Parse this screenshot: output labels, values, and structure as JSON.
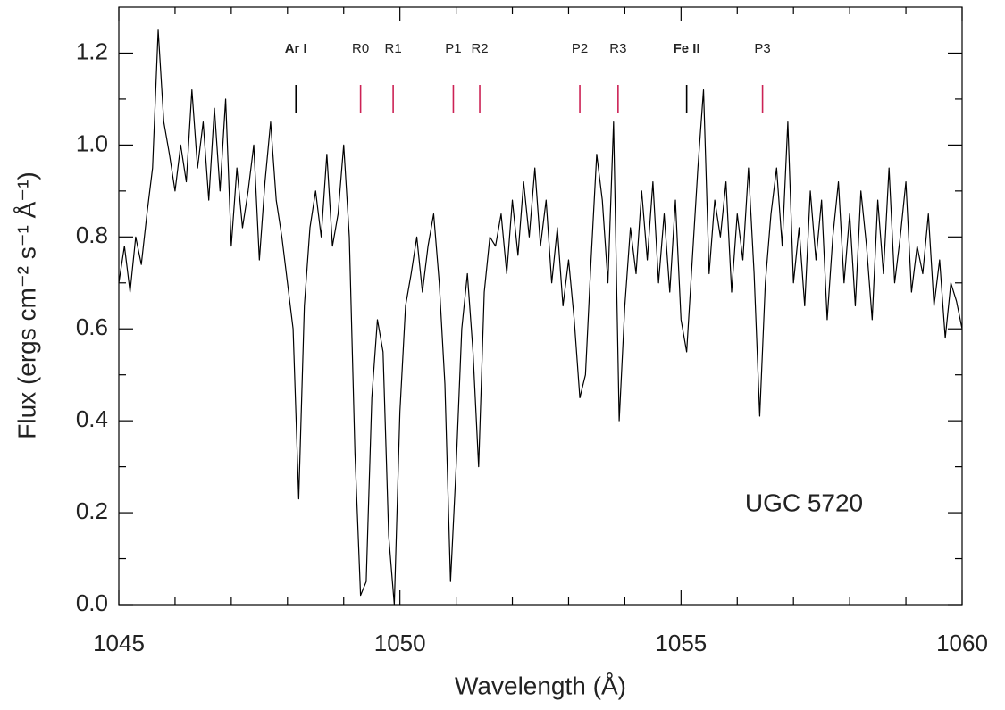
{
  "chart_data": {
    "type": "line",
    "x_label": "Wavelength (Å)",
    "y_label": "Flux (ergs cm⁻² s⁻¹ Å⁻¹)",
    "annotation": "UGC 5720",
    "color": "#000000",
    "xlim": [
      1045,
      1060
    ],
    "ylim": [
      0,
      1.3
    ],
    "xticks": [
      1045,
      1050,
      1055,
      1060
    ],
    "xminorticks": [
      1046,
      1047,
      1048,
      1049,
      1051,
      1052,
      1053,
      1054,
      1056,
      1057,
      1058,
      1059
    ],
    "yticks": [
      {
        "value": 0,
        "label": "0.0"
      },
      0.2,
      0.4,
      0.6,
      0.8,
      {
        "value": 1,
        "label": "1.0"
      },
      1.2
    ],
    "yminorticks": [
      0.1,
      0.3,
      0.5,
      0.7,
      0.9,
      1.1
    ],
    "lines": [
      {
        "label": "Ar I",
        "x": 1048.15,
        "color": "#000000",
        "weight": "bold"
      },
      {
        "label": "R0",
        "x": 1049.3,
        "color": "#cc2255",
        "weight": "normal"
      },
      {
        "label": "R1",
        "x": 1049.88,
        "color": "#cc2255",
        "weight": "normal"
      },
      {
        "label": "P1",
        "x": 1050.95,
        "color": "#cc2255",
        "weight": "normal"
      },
      {
        "label": "R2",
        "x": 1051.42,
        "color": "#cc2255",
        "weight": "normal"
      },
      {
        "label": "P2",
        "x": 1053.2,
        "color": "#cc2255",
        "weight": "normal"
      },
      {
        "label": "R3",
        "x": 1053.88,
        "color": "#cc2255",
        "weight": "normal"
      },
      {
        "label": "Fe II",
        "x": 1055.1,
        "color": "#000000",
        "weight": "bold"
      },
      {
        "label": "P3",
        "x": 1056.45,
        "color": "#cc2255",
        "weight": "normal"
      }
    ],
    "x": [
      1045.0,
      1045.1,
      1045.2,
      1045.3,
      1045.4,
      1045.5,
      1045.6,
      1045.7,
      1045.8,
      1045.9,
      1046.0,
      1046.1,
      1046.2,
      1046.3,
      1046.4,
      1046.5,
      1046.6,
      1046.7,
      1046.8,
      1046.9,
      1047.0,
      1047.1,
      1047.2,
      1047.3,
      1047.4,
      1047.5,
      1047.6,
      1047.7,
      1047.8,
      1047.9,
      1048.0,
      1048.1,
      1048.2,
      1048.3,
      1048.4,
      1048.5,
      1048.6,
      1048.7,
      1048.8,
      1048.9,
      1049.0,
      1049.1,
      1049.2,
      1049.3,
      1049.4,
      1049.5,
      1049.6,
      1049.7,
      1049.8,
      1049.9,
      1050.0,
      1050.1,
      1050.2,
      1050.3,
      1050.4,
      1050.5,
      1050.6,
      1050.7,
      1050.8,
      1050.9,
      1051.0,
      1051.1,
      1051.2,
      1051.3,
      1051.4,
      1051.5,
      1051.6,
      1051.7,
      1051.8,
      1051.9,
      1052.0,
      1052.1,
      1052.2,
      1052.3,
      1052.4,
      1052.5,
      1052.6,
      1052.7,
      1052.8,
      1052.9,
      1053.0,
      1053.1,
      1053.2,
      1053.3,
      1053.4,
      1053.5,
      1053.6,
      1053.7,
      1053.8,
      1053.9,
      1054.0,
      1054.1,
      1054.2,
      1054.3,
      1054.4,
      1054.5,
      1054.6,
      1054.7,
      1054.8,
      1054.9,
      1055.0,
      1055.1,
      1055.2,
      1055.3,
      1055.4,
      1055.5,
      1055.6,
      1055.7,
      1055.8,
      1055.9,
      1056.0,
      1056.1,
      1056.2,
      1056.3,
      1056.4,
      1056.5,
      1056.6,
      1056.7,
      1056.8,
      1056.9,
      1057.0,
      1057.1,
      1057.2,
      1057.3,
      1057.4,
      1057.5,
      1057.6,
      1057.7,
      1057.8,
      1057.9,
      1058.0,
      1058.1,
      1058.2,
      1058.3,
      1058.4,
      1058.5,
      1058.6,
      1058.7,
      1058.8,
      1058.9,
      1059.0,
      1059.1,
      1059.2,
      1059.3,
      1059.4,
      1059.5,
      1059.6,
      1059.7,
      1059.8,
      1059.9,
      1060.0
    ],
    "values": [
      0.7,
      0.78,
      0.68,
      0.8,
      0.74,
      0.85,
      0.95,
      1.25,
      1.05,
      0.98,
      0.9,
      1.0,
      0.92,
      1.12,
      0.95,
      1.05,
      0.88,
      1.08,
      0.9,
      1.1,
      0.78,
      0.95,
      0.82,
      0.9,
      1.0,
      0.75,
      0.92,
      1.05,
      0.88,
      0.8,
      0.7,
      0.6,
      0.23,
      0.65,
      0.82,
      0.9,
      0.8,
      0.98,
      0.78,
      0.85,
      1.0,
      0.8,
      0.33,
      0.02,
      0.05,
      0.45,
      0.62,
      0.55,
      0.15,
      0.0,
      0.42,
      0.65,
      0.72,
      0.8,
      0.68,
      0.78,
      0.85,
      0.7,
      0.48,
      0.05,
      0.3,
      0.6,
      0.72,
      0.55,
      0.3,
      0.68,
      0.8,
      0.78,
      0.85,
      0.72,
      0.88,
      0.76,
      0.92,
      0.8,
      0.95,
      0.78,
      0.88,
      0.7,
      0.82,
      0.65,
      0.75,
      0.62,
      0.45,
      0.5,
      0.75,
      0.98,
      0.88,
      0.7,
      1.05,
      0.4,
      0.65,
      0.82,
      0.72,
      0.9,
      0.75,
      0.92,
      0.7,
      0.85,
      0.68,
      0.88,
      0.62,
      0.55,
      0.75,
      0.95,
      1.12,
      0.72,
      0.88,
      0.8,
      0.92,
      0.68,
      0.85,
      0.75,
      0.95,
      0.72,
      0.41,
      0.7,
      0.85,
      0.95,
      0.78,
      1.05,
      0.7,
      0.82,
      0.65,
      0.9,
      0.75,
      0.88,
      0.62,
      0.8,
      0.92,
      0.7,
      0.85,
      0.65,
      0.9,
      0.78,
      0.62,
      0.88,
      0.72,
      0.95,
      0.7,
      0.8,
      0.92,
      0.68,
      0.78,
      0.72,
      0.85,
      0.65,
      0.75,
      0.58,
      0.7,
      0.66,
      0.6
    ]
  }
}
